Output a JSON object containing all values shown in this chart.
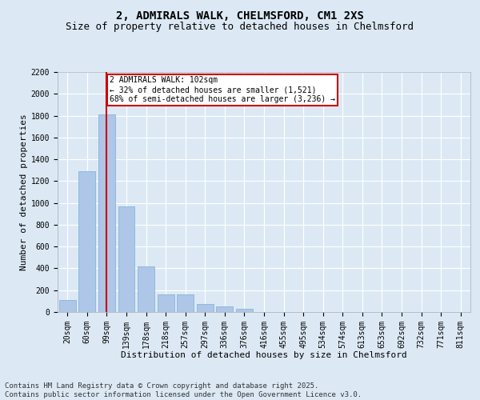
{
  "title_line1": "2, ADMIRALS WALK, CHELMSFORD, CM1 2XS",
  "title_line2": "Size of property relative to detached houses in Chelmsford",
  "xlabel": "Distribution of detached houses by size in Chelmsford",
  "ylabel": "Number of detached properties",
  "categories": [
    "20sqm",
    "60sqm",
    "99sqm",
    "139sqm",
    "178sqm",
    "218sqm",
    "257sqm",
    "297sqm",
    "336sqm",
    "376sqm",
    "416sqm",
    "455sqm",
    "495sqm",
    "534sqm",
    "574sqm",
    "613sqm",
    "653sqm",
    "692sqm",
    "732sqm",
    "771sqm",
    "811sqm"
  ],
  "values": [
    110,
    1290,
    1810,
    970,
    420,
    160,
    160,
    75,
    55,
    30,
    0,
    0,
    0,
    0,
    0,
    0,
    0,
    0,
    0,
    0,
    0
  ],
  "bar_color": "#aec6e8",
  "bar_edge_color": "#7aafd4",
  "vline_x": 2,
  "vline_color": "#cc0000",
  "annotation_text": "2 ADMIRALS WALK: 102sqm\n← 32% of detached houses are smaller (1,521)\n68% of semi-detached houses are larger (3,236) →",
  "annotation_box_color": "#ffffff",
  "annotation_box_edge": "#cc0000",
  "ylim": [
    0,
    2200
  ],
  "yticks": [
    0,
    200,
    400,
    600,
    800,
    1000,
    1200,
    1400,
    1600,
    1800,
    2000,
    2200
  ],
  "bg_color": "#dce9f5",
  "plot_bg_color": "#dce9f5",
  "footer_line1": "Contains HM Land Registry data © Crown copyright and database right 2025.",
  "footer_line2": "Contains public sector information licensed under the Open Government Licence v3.0.",
  "title_fontsize": 10,
  "subtitle_fontsize": 9,
  "label_fontsize": 8,
  "tick_fontsize": 7,
  "footer_fontsize": 6.5
}
